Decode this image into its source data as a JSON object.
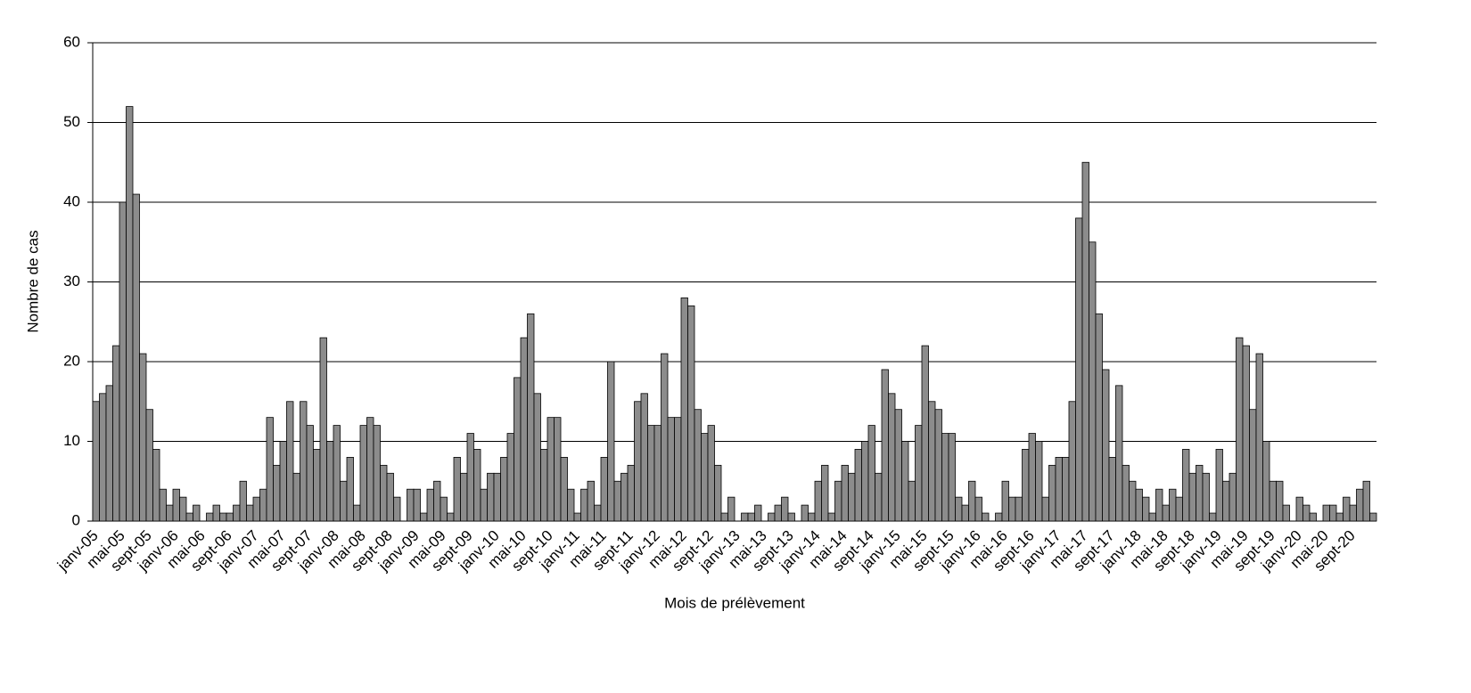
{
  "chart_data": {
    "type": "bar",
    "x_label": "Mois de prélèvement",
    "y_label": "Nombre de cas",
    "categories": [
      "janv-05",
      null,
      null,
      null,
      "mai-05",
      null,
      null,
      null,
      "sept-05",
      null,
      null,
      null,
      "janv-06",
      null,
      null,
      null,
      "mai-06",
      null,
      null,
      null,
      "sept-06",
      null,
      null,
      null,
      "janv-07",
      null,
      null,
      null,
      "mai-07",
      null,
      null,
      null,
      "sept-07",
      null,
      null,
      null,
      "janv-08",
      null,
      null,
      null,
      "mai-08",
      null,
      null,
      null,
      "sept-08",
      null,
      null,
      null,
      "janv-09",
      null,
      null,
      null,
      "mai-09",
      null,
      null,
      null,
      "sept-09",
      null,
      null,
      null,
      "janv-10",
      null,
      null,
      null,
      "mai-10",
      null,
      null,
      null,
      "sept-10",
      null,
      null,
      null,
      "janv-11",
      null,
      null,
      null,
      "mai-11",
      null,
      null,
      null,
      "sept-11",
      null,
      null,
      null,
      "janv-12",
      null,
      null,
      null,
      "mai-12",
      null,
      null,
      null,
      "sept-12",
      null,
      null,
      null,
      "janv-13",
      null,
      null,
      null,
      "mai-13",
      null,
      null,
      null,
      "sept-13",
      null,
      null,
      null,
      "janv-14",
      null,
      null,
      null,
      "mai-14",
      null,
      null,
      null,
      "sept-14",
      null,
      null,
      null,
      "janv-15",
      null,
      null,
      null,
      "mai-15",
      null,
      null,
      null,
      "sept-15",
      null,
      null,
      null,
      "janv-16",
      null,
      null,
      null,
      "mai-16",
      null,
      null,
      null,
      "sept-16",
      null,
      null,
      null,
      "janv-17",
      null,
      null,
      null,
      "mai-17",
      null,
      null,
      null,
      "sept-17",
      null,
      null,
      null,
      "janv-18",
      null,
      null,
      null,
      "mai-18",
      null,
      null,
      null,
      "sept-18",
      null,
      null,
      null,
      "janv-19",
      null,
      null,
      null,
      "mai-19",
      null,
      null,
      null,
      "sept-19",
      null,
      null,
      null,
      "janv-20",
      null,
      null,
      null,
      "mai-20",
      null,
      null,
      null,
      "sept-20",
      null,
      null,
      null
    ],
    "values": [
      15,
      16,
      17,
      22,
      40,
      52,
      41,
      21,
      14,
      9,
      4,
      2,
      4,
      3,
      1,
      2,
      0,
      1,
      2,
      1,
      1,
      2,
      5,
      2,
      3,
      4,
      13,
      7,
      10,
      15,
      6,
      15,
      12,
      9,
      23,
      10,
      12,
      5,
      8,
      2,
      12,
      13,
      12,
      7,
      6,
      3,
      0,
      4,
      4,
      1,
      4,
      5,
      3,
      1,
      8,
      6,
      11,
      9,
      4,
      6,
      6,
      8,
      11,
      18,
      23,
      26,
      16,
      9,
      13,
      13,
      8,
      4,
      1,
      4,
      5,
      2,
      8,
      20,
      5,
      6,
      7,
      15,
      16,
      12,
      12,
      21,
      13,
      13,
      28,
      27,
      14,
      11,
      12,
      7,
      1,
      3,
      0,
      1,
      1,
      2,
      0,
      1,
      2,
      3,
      1,
      0,
      2,
      1,
      5,
      7,
      1,
      5,
      7,
      6,
      9,
      10,
      12,
      6,
      19,
      16,
      14,
      10,
      5,
      12,
      22,
      15,
      14,
      11,
      11,
      3,
      2,
      5,
      3,
      1,
      0,
      1,
      5,
      3,
      3,
      9,
      11,
      10,
      3,
      7,
      8,
      8,
      15,
      38,
      45,
      35,
      26,
      19,
      8,
      17,
      7,
      5,
      4,
      3,
      1,
      4,
      2,
      4,
      3,
      9,
      6,
      7,
      6,
      1,
      9,
      5,
      6,
      23,
      22,
      14,
      21,
      10,
      5,
      5,
      2,
      0,
      3,
      2,
      1,
      0,
      2,
      2,
      1,
      3,
      2,
      4,
      5,
      1
    ],
    "color": "#8c8c8c",
    "ylim": [
      0,
      60
    ],
    "yticks": [
      0,
      10,
      20,
      30,
      40,
      50,
      60
    ],
    "grid": true
  }
}
